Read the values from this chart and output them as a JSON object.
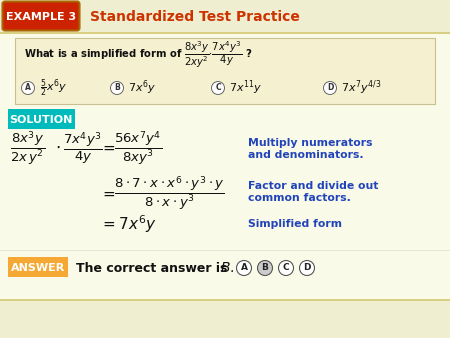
{
  "bg_color": "#fafae8",
  "header_bg": "#f0eed0",
  "example_box_color": "#cc2200",
  "example_border_color": "#aa6600",
  "example_text": "EXAMPLE 3",
  "header_title": "Standardized Test Practice",
  "header_title_color": "#cc3300",
  "question_box_color": "#f5f0d0",
  "question_border_color": "#c8c090",
  "solution_box_color": "#00bbbb",
  "solution_text": "SOLUTION",
  "answer_box_color": "#f5a833",
  "answer_text": "ANSWER",
  "blue_color": "#2244bb",
  "dark_color": "#111111",
  "header_line_color": "#d4c870"
}
